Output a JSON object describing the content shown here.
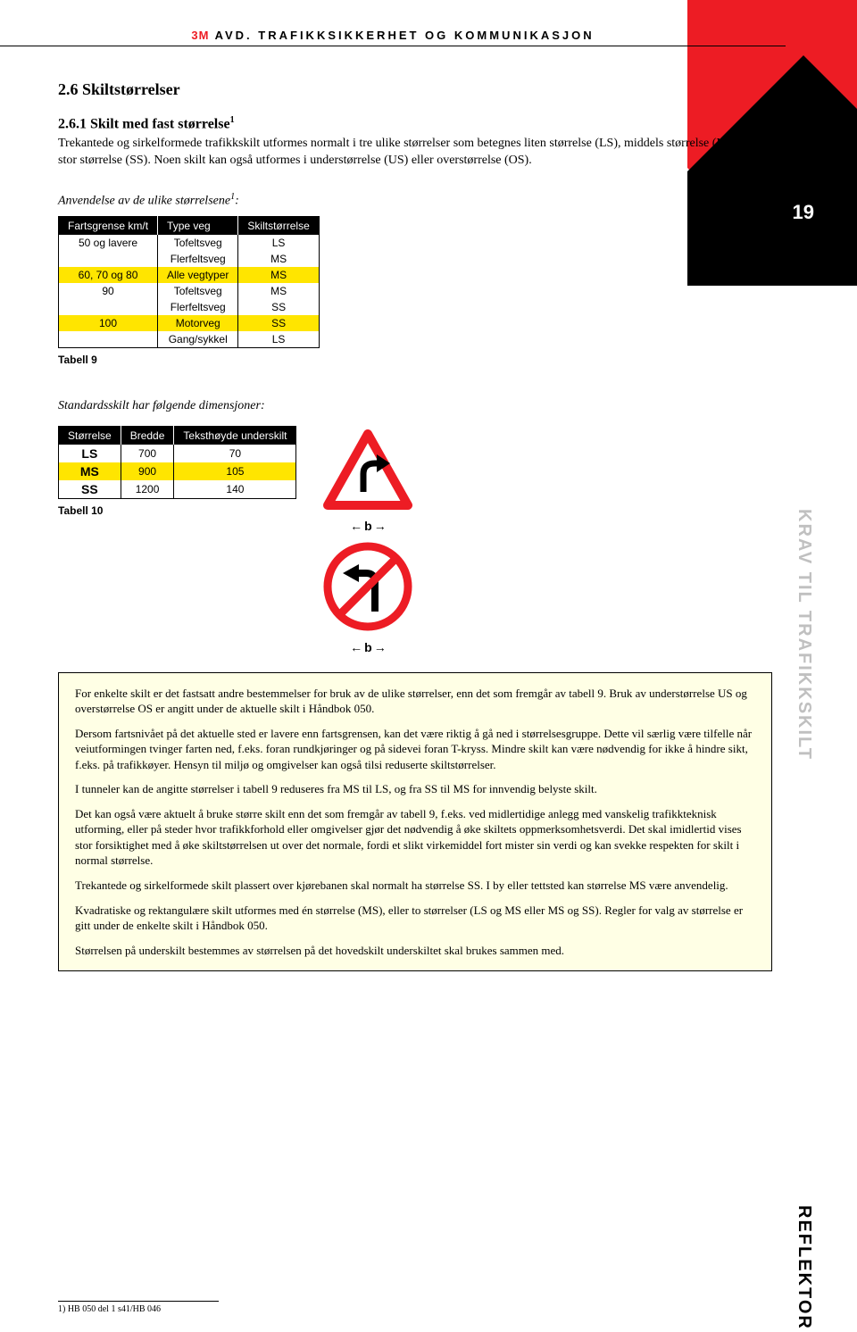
{
  "header": {
    "logo": "3M",
    "dept": "AVD. TRAFIKKSIKKERHET OG KOMMUNIKASJON"
  },
  "pagenum": "19",
  "section": {
    "title": "2.6 Skiltstørrelser"
  },
  "subsection": {
    "title": "2.6.1 Skilt med fast størrelse",
    "sup": "1",
    "para": "Trekantede og sirkelformede trafikkskilt utformes normalt i tre ulike størrelser som betegnes liten størrelse (LS), middels størrelse (MS) og stor størrelse (SS). Noen skilt kan også utformes i understørrelse (US) eller overstørrelse (OS)."
  },
  "usageLabel": "Anvendelse av de ulike størrelsene",
  "usageSup": "1",
  "table9": {
    "headers": [
      "Fartsgrense km/t",
      "Type veg",
      "Skiltstørrelse"
    ],
    "rows": [
      {
        "c": [
          "50 og lavere",
          "Tofeltsveg",
          "LS"
        ],
        "hl": false
      },
      {
        "c": [
          "",
          "Flerfeltsveg",
          "MS"
        ],
        "hl": false
      },
      {
        "c": [
          "60, 70 og 80",
          "Alle vegtyper",
          "MS"
        ],
        "hl": true
      },
      {
        "c": [
          "90",
          "Tofeltsveg",
          "MS"
        ],
        "hl": false
      },
      {
        "c": [
          "",
          "Flerfeltsveg",
          "SS"
        ],
        "hl": false
      },
      {
        "c": [
          "100",
          "Motorveg",
          "SS"
        ],
        "hl": true
      },
      {
        "c": [
          "",
          "Gang/sykkel",
          "LS"
        ],
        "hl": false
      }
    ],
    "caption": "Tabell 9"
  },
  "dimLabel": "Standardsskilt har følgende dimensjoner:",
  "table10": {
    "headers": [
      "Størrelse",
      "Bredde",
      "Teksthøyde underskilt"
    ],
    "rows": [
      {
        "c": [
          "LS",
          "700",
          "70"
        ],
        "hl": false
      },
      {
        "c": [
          "MS",
          "900",
          "105"
        ],
        "hl": true
      },
      {
        "c": [
          "SS",
          "1200",
          "140"
        ],
        "hl": false
      }
    ],
    "caption": "Tabell 10"
  },
  "bLabel": "b",
  "callout": {
    "p1": "For enkelte skilt er det fastsatt andre bestemmelser for bruk av de ulike størrelser, enn det som fremgår av tabell 9. Bruk av understørrelse US og overstørrelse OS er angitt under de aktuelle skilt i Håndbok 050.",
    "p2": "Dersom fartsnivået på det aktuelle sted er lavere enn fartsgrensen, kan det være riktig å gå ned i størrelsesgruppe. Dette vil særlig være tilfelle når veiutformingen tvinger farten ned, f.eks. foran rundkjøringer og på sidevei foran T-kryss. Mindre skilt kan være nødvendig for ikke å hindre sikt, f.eks. på trafikkøyer. Hensyn til miljø og omgivelser kan også tilsi reduserte skiltstørrelser.",
    "p3": "I tunneler kan de angitte størrelser i tabell 9 reduseres fra MS til LS, og fra SS til MS for innvendig belyste skilt.",
    "p4": "Det kan også være aktuelt å bruke større skilt enn det som fremgår av tabell 9, f.eks. ved midlertidige anlegg med vanskelig trafikkteknisk utforming, eller på steder hvor trafikkforhold eller omgivelser gjør det nødvendig å øke skiltets oppmerksomhetsverdi. Det skal imidlertid vises stor forsiktighet med å øke skiltstørrelsen ut over det normale, fordi et slikt virkemiddel fort mister sin verdi og kan svekke respekten for skilt i normal størrelse.",
    "p5": "Trekantede og sirkelformede skilt plassert over kjørebanen skal normalt ha størrelse SS. I by eller tettsted kan størrelse MS være anvendelig.",
    "p6": "Kvadratiske og rektangulære skilt utformes med én størrelse (MS), eller to størrelser (LS og MS eller MS og SS). Regler for valg av størrelse er gitt under de enkelte skilt i Håndbok 050.",
    "p7": "Størrelsen på underskilt bestemmes av størrelsen på det hovedskilt underskiltet skal brukes sammen med."
  },
  "sideLabels": {
    "krav": "KRAV TIL TRAFIKKSKILT",
    "refl": "REFLEKTOR"
  },
  "footnote": "1) HB 050 del 1 s41/HB 046",
  "colors": {
    "red": "#ed1c24",
    "yellow": "#ffe500",
    "calloutBg": "#ffffe5",
    "grey": "#c0c0c0"
  }
}
